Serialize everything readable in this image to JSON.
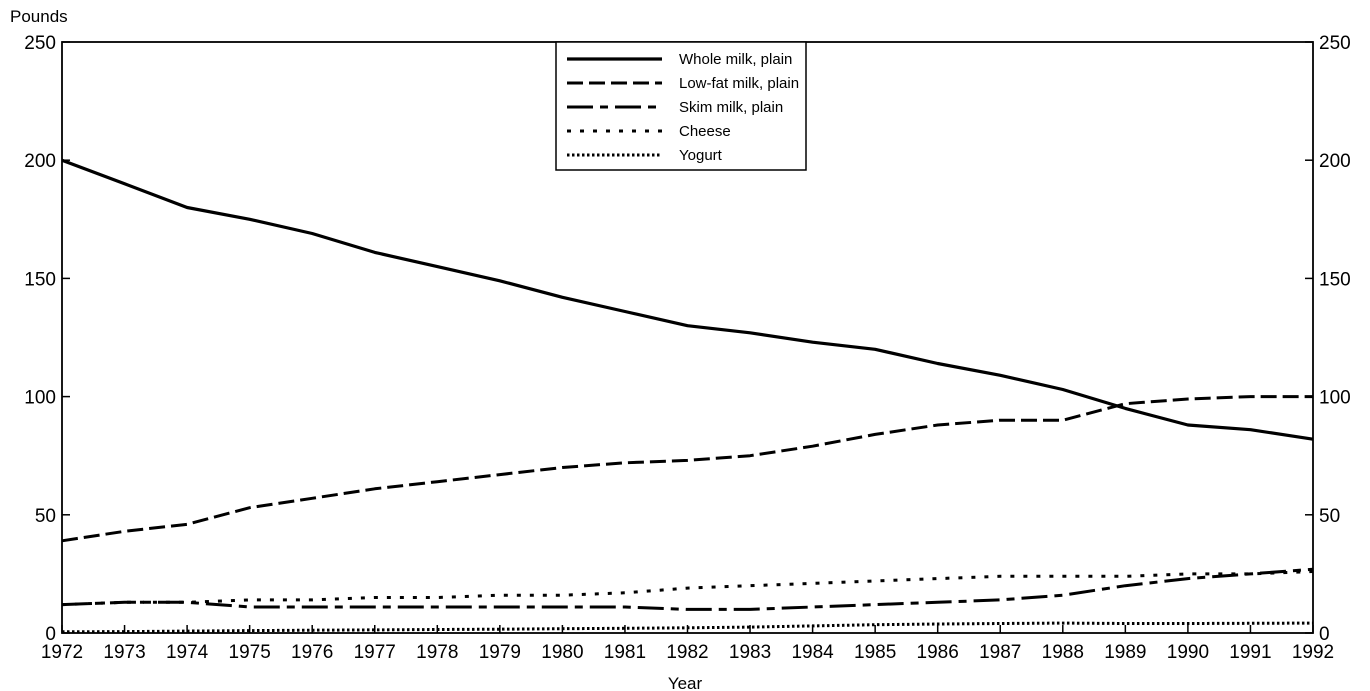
{
  "chart_data": {
    "type": "line",
    "title": "",
    "ylabel": "Pounds",
    "xlabel": "Year",
    "ylim": [
      0,
      250
    ],
    "yticks": [
      0,
      50,
      100,
      150,
      200,
      250
    ],
    "grid": false,
    "legend_position": "top-center",
    "x": [
      1972,
      1973,
      1974,
      1975,
      1976,
      1977,
      1978,
      1979,
      1980,
      1981,
      1982,
      1983,
      1984,
      1985,
      1986,
      1987,
      1988,
      1989,
      1990,
      1991,
      1992
    ],
    "x_labels": [
      "1972",
      "1973",
      "1974",
      "1975",
      "1976",
      "1977",
      "1978",
      "1979",
      "1980",
      "1981",
      "1982",
      "1983",
      "1984",
      "1985",
      "1986",
      "1987",
      "1988",
      "1989",
      "1990",
      "1991",
      "1992"
    ],
    "series": [
      {
        "name": "Whole milk, plain",
        "style": "solid",
        "values": [
          200,
          190,
          180,
          175,
          169,
          161,
          155,
          149,
          142,
          136,
          130,
          127,
          123,
          120,
          114,
          109,
          103,
          95,
          88,
          86,
          82
        ]
      },
      {
        "name": "Low-fat milk, plain",
        "style": "dash",
        "values": [
          39,
          43,
          46,
          53,
          57,
          61,
          64,
          67,
          70,
          72,
          73,
          75,
          79,
          84,
          88,
          90,
          90,
          97,
          99,
          100,
          100
        ]
      },
      {
        "name": "Skim milk, plain",
        "style": "long-dash-short-dash",
        "values": [
          12,
          13,
          13,
          11,
          11,
          11,
          11,
          11,
          11,
          11,
          10,
          10,
          11,
          12,
          13,
          14,
          16,
          20,
          23,
          25,
          27
        ]
      },
      {
        "name": "Cheese",
        "style": "sparse-dot",
        "values": [
          12,
          13,
          13,
          14,
          14,
          15,
          15,
          16,
          16,
          17,
          19,
          20,
          21,
          22,
          23,
          24,
          24,
          24,
          25,
          25,
          26
        ]
      },
      {
        "name": "Yogurt",
        "style": "dense-dot",
        "values": [
          0.5,
          0.6,
          0.8,
          1.0,
          1.2,
          1.3,
          1.5,
          1.6,
          1.8,
          2.0,
          2.2,
          2.5,
          3.0,
          3.5,
          3.8,
          4.0,
          4.2,
          4.0,
          4.0,
          4.1,
          4.2
        ]
      }
    ]
  }
}
